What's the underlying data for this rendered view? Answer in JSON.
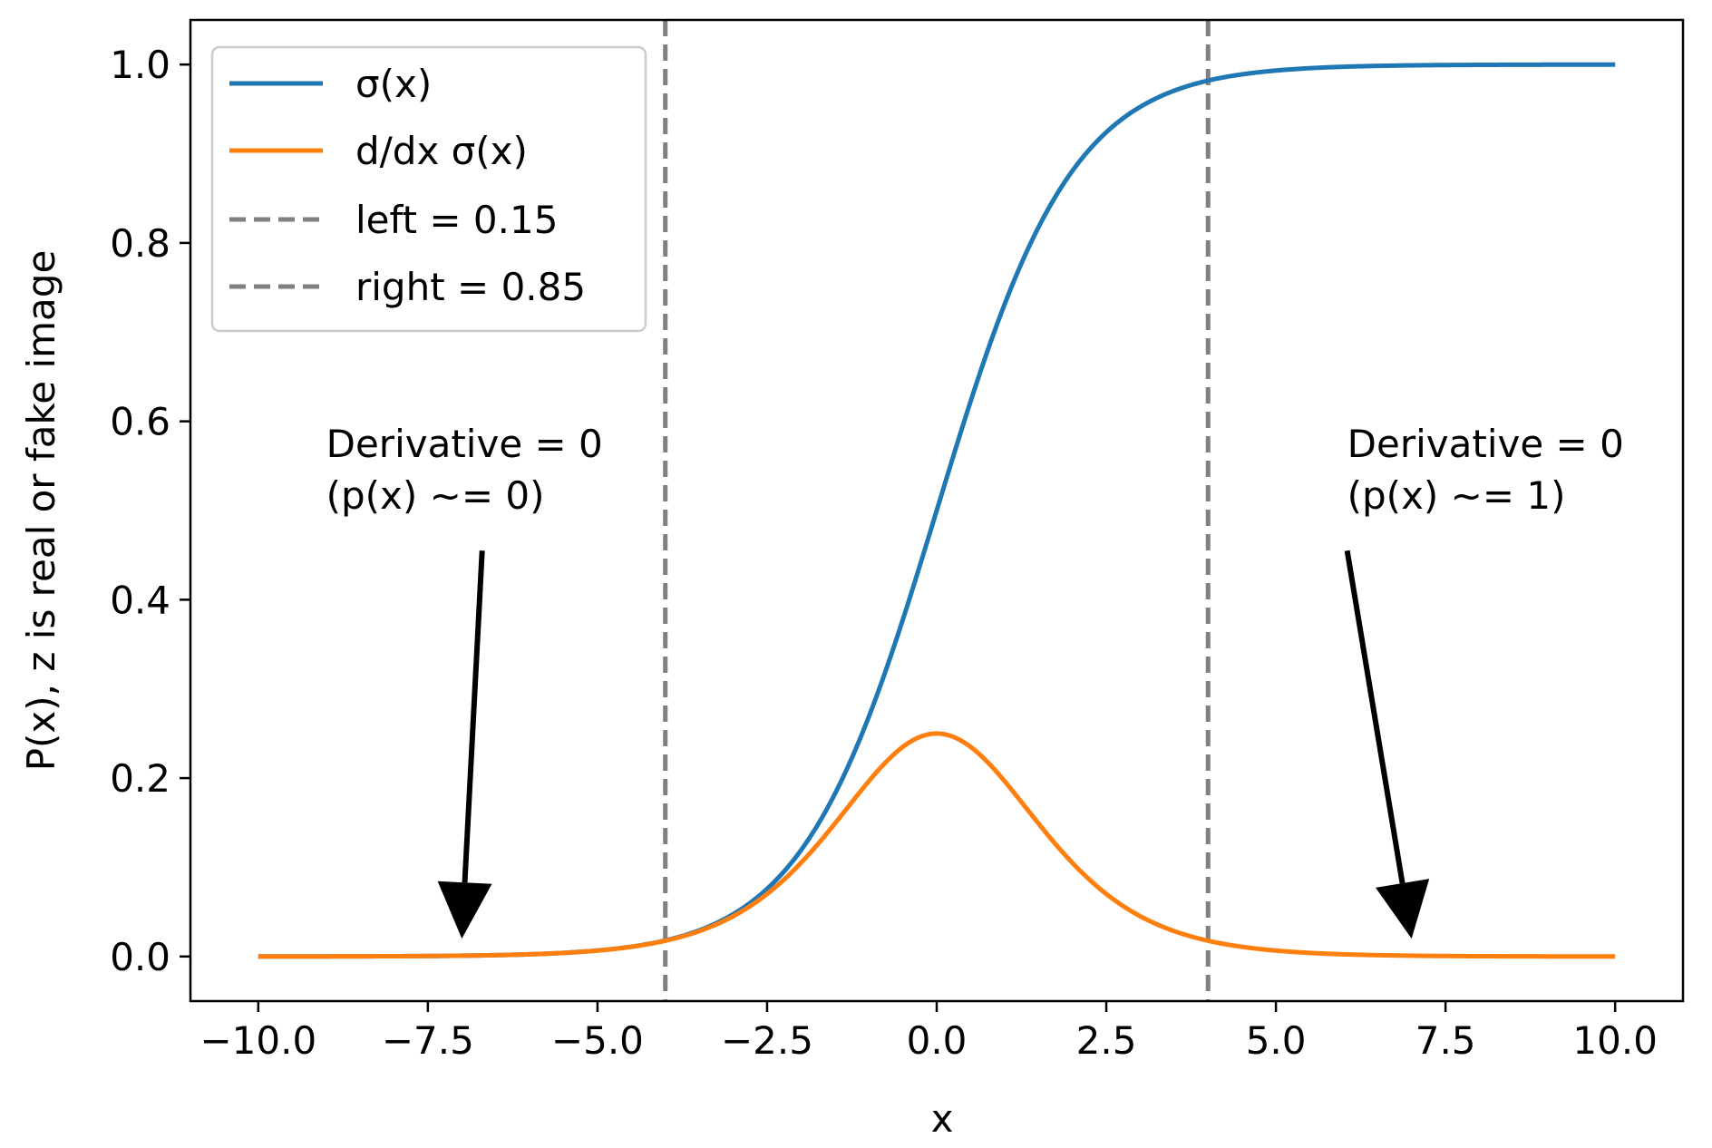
{
  "chart_data": {
    "type": "line",
    "title": "",
    "xlabel": "x",
    "ylabel": "P(x), z is real or fake image",
    "xlim": [
      -11,
      11
    ],
    "ylim": [
      -0.05,
      1.05
    ],
    "x_ticks": [
      -10.0,
      -7.5,
      -5.0,
      -2.5,
      0.0,
      2.5,
      5.0,
      7.5,
      10.0
    ],
    "x_tick_labels": [
      "−10.0",
      "−7.5",
      "−5.0",
      "−2.5",
      "0.0",
      "2.5",
      "5.0",
      "7.5",
      "10.0"
    ],
    "y_ticks": [
      0.0,
      0.2,
      0.4,
      0.6,
      0.8,
      1.0
    ],
    "y_tick_labels": [
      "0.0",
      "0.2",
      "0.4",
      "0.6",
      "0.8",
      "1.0"
    ],
    "x_range": [
      -10,
      10
    ],
    "series": [
      {
        "name": "σ(x)",
        "function": "sigmoid",
        "color": "#1f77b4"
      },
      {
        "name": "d/dx σ(x)",
        "function": "sigmoid_derivative",
        "color": "#ff7f0e"
      }
    ],
    "vlines": [
      {
        "name": "left = 0.15",
        "x": -4.0,
        "color": "#808080",
        "style": "dashed"
      },
      {
        "name": "right = 0.85",
        "x": 4.0,
        "color": "#808080",
        "style": "dashed"
      }
    ],
    "legend_position": "top-left",
    "annotations": [
      {
        "lines": [
          "Derivative = 0",
          "(p(x) ~= 0)"
        ],
        "text_x": -9.0,
        "text_y": 0.56,
        "arrow_from": [
          -6.7,
          0.455
        ],
        "arrow_to": [
          -7.0,
          0.02
        ]
      },
      {
        "lines": [
          "Derivative = 0",
          "(p(x) ~= 1)"
        ],
        "text_x": 6.05,
        "text_y": 0.56,
        "arrow_from": [
          6.05,
          0.455
        ],
        "arrow_to": [
          7.0,
          0.02
        ]
      }
    ],
    "grid": false
  }
}
